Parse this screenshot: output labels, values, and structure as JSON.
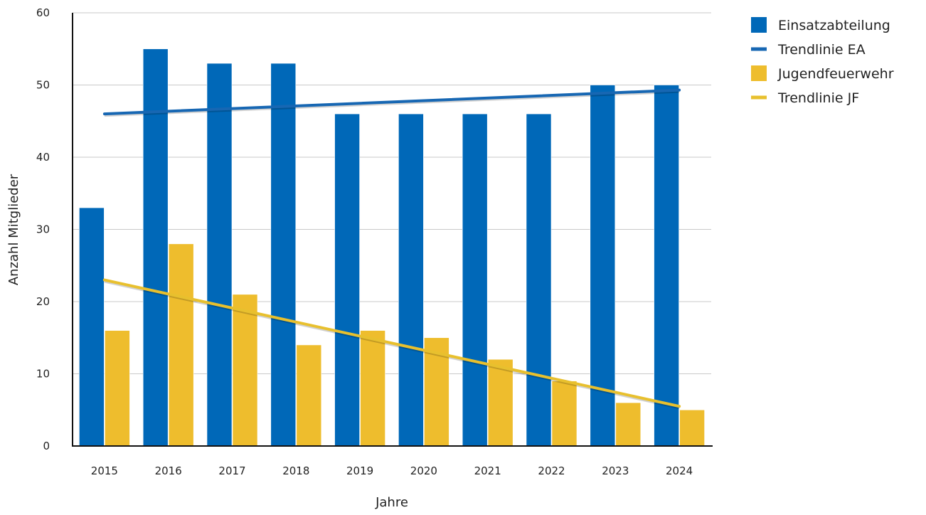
{
  "chart_data": {
    "type": "bar",
    "categories": [
      "2015",
      "2016",
      "2017",
      "2018",
      "2019",
      "2020",
      "2021",
      "2022",
      "2023",
      "2024"
    ],
    "series": [
      {
        "name": "Einsatzabteilung",
        "kind": "bar",
        "color": "#0068b8",
        "values": [
          33,
          55,
          53,
          53,
          46,
          46,
          46,
          46,
          50,
          50
        ]
      },
      {
        "name": "Jugendfeuerwehr",
        "kind": "bar",
        "color": "#eebd2d",
        "values": [
          16,
          28,
          21,
          14,
          16,
          15,
          12,
          9,
          6,
          5
        ]
      }
    ],
    "trendlines": [
      {
        "name": "Trendlinie EA",
        "color": "#1767b3",
        "start": {
          "x": "2015",
          "y": 46
        },
        "end": {
          "x": "2024",
          "y": 49.3
        }
      },
      {
        "name": "Trendlinie JF",
        "color": "#e8c02e",
        "start": {
          "x": "2015",
          "y": 23
        },
        "end": {
          "x": "2024",
          "y": 5.5
        }
      }
    ],
    "legend": {
      "position": "top-right",
      "entries": [
        {
          "label": "Einsatzabteilung",
          "marker": "square",
          "color": "#0068b8"
        },
        {
          "label": "Trendlinie EA",
          "marker": "line",
          "color": "#1767b3"
        },
        {
          "label": "Jugendfeuerwehr",
          "marker": "square",
          "color": "#eebd2d"
        },
        {
          "label": "Trendlinie JF",
          "marker": "line",
          "color": "#e8c02e"
        }
      ]
    },
    "title": "",
    "xlabel": "Jahre",
    "ylabel": "Anzahl Mitglieder",
    "ylim": [
      0,
      60
    ],
    "yticks": [
      "0",
      "10",
      "20",
      "30",
      "40",
      "50",
      "60"
    ],
    "grid": true
  }
}
